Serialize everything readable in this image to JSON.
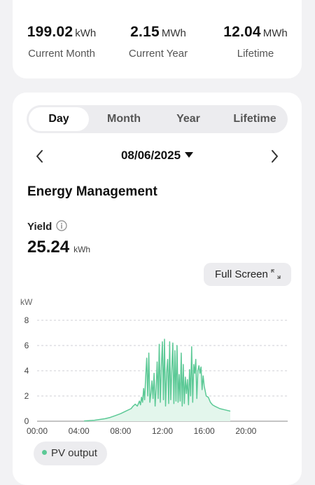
{
  "summary": {
    "current_month": {
      "value": "199.02",
      "unit": "kWh",
      "label": "Current Month"
    },
    "current_year": {
      "value": "2.15",
      "unit": "MWh",
      "label": "Current Year"
    },
    "lifetime": {
      "value": "12.04",
      "unit": "MWh",
      "label": "Lifetime"
    }
  },
  "tabs": [
    {
      "label": "Day",
      "active": true
    },
    {
      "label": "Month",
      "active": false
    },
    {
      "label": "Year",
      "active": false
    },
    {
      "label": "Lifetime",
      "active": false
    }
  ],
  "date_picker": {
    "value": "08/06/2025"
  },
  "section": {
    "title": "Energy Management"
  },
  "yield": {
    "label": "Yield",
    "value": "25.24",
    "unit": "kWh"
  },
  "full_screen_label": "Full Screen",
  "colors": {
    "pv_line": "#5cc996",
    "pv_fill": "#e3f6ec",
    "grid": "#cfcfd4",
    "axis": "#888888"
  },
  "chart_data": {
    "type": "area",
    "ylabel": "kW",
    "ylim": [
      0,
      8
    ],
    "yticks": [
      "8",
      "6",
      "4",
      "2",
      "0"
    ],
    "xlim": [
      0,
      24
    ],
    "xticks": [
      "00:00",
      "04:00",
      "08:00",
      "12:00",
      "16:00",
      "20:00"
    ],
    "grid": true,
    "series": [
      {
        "name": "PV output",
        "x": [
          4.5,
          5.5,
          6.5,
          7.0,
          7.5,
          8.0,
          8.5,
          9.0,
          9.2,
          9.4,
          9.6,
          9.8,
          9.9,
          10.0,
          10.1,
          10.2,
          10.3,
          10.4,
          10.5,
          10.6,
          10.7,
          10.8,
          10.9,
          11.0,
          11.1,
          11.2,
          11.3,
          11.4,
          11.5,
          11.6,
          11.7,
          11.8,
          11.9,
          12.0,
          12.1,
          12.2,
          12.3,
          12.4,
          12.5,
          12.6,
          12.7,
          12.8,
          12.9,
          13.0,
          13.1,
          13.2,
          13.3,
          13.4,
          13.5,
          13.6,
          13.7,
          13.8,
          13.9,
          14.0,
          14.1,
          14.2,
          14.3,
          14.4,
          14.5,
          14.6,
          14.7,
          14.8,
          14.9,
          15.0,
          15.1,
          15.2,
          15.3,
          15.4,
          15.5,
          15.6,
          15.7,
          15.8,
          15.9,
          16.0,
          16.2,
          16.4,
          16.6,
          16.8,
          17.0,
          17.5,
          18.0,
          18.5
        ],
        "y": [
          0.02,
          0.08,
          0.2,
          0.3,
          0.45,
          0.6,
          0.8,
          1.0,
          1.2,
          1.35,
          1.2,
          1.6,
          1.3,
          1.9,
          1.5,
          2.6,
          1.7,
          3.5,
          5.0,
          2.0,
          5.4,
          1.5,
          2.2,
          3.2,
          1.8,
          3.8,
          1.2,
          2.6,
          4.7,
          1.8,
          6.1,
          1.5,
          4.3,
          6.3,
          1.7,
          6.5,
          1.2,
          3.8,
          4.9,
          1.4,
          6.3,
          1.7,
          4.0,
          6.2,
          1.4,
          5.6,
          1.6,
          6.0,
          1.5,
          3.7,
          1.6,
          5.4,
          1.2,
          4.5,
          1.4,
          3.5,
          2.2,
          3.3,
          1.3,
          4.1,
          2.0,
          5.9,
          1.5,
          4.5,
          3.8,
          4.9,
          1.8,
          4.0,
          4.4,
          3.8,
          4.3,
          2.5,
          3.6,
          2.8,
          2.0,
          1.9,
          1.5,
          1.3,
          1.2,
          1.0,
          0.9,
          0.8
        ]
      }
    ]
  },
  "legend": {
    "label": "PV output"
  }
}
